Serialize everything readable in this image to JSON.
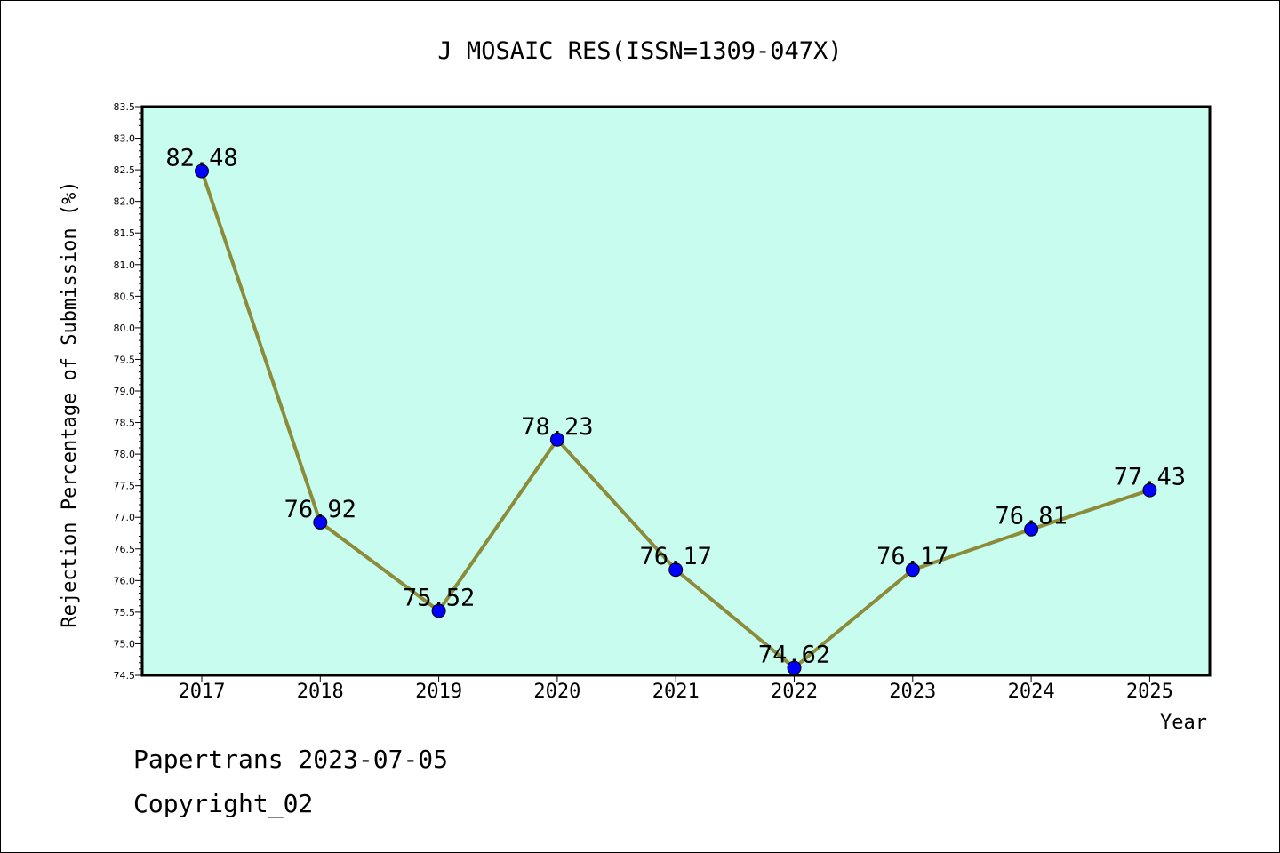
{
  "chart_data": {
    "type": "line",
    "title": "J MOSAIC RES(ISSN=1309-047X)",
    "xlabel": "Year",
    "ylabel": "Rejection Percentage of Submission (%)",
    "categories": [
      "2017",
      "2018",
      "2019",
      "2020",
      "2021",
      "2022",
      "2023",
      "2024",
      "2025"
    ],
    "values": [
      82.48,
      76.92,
      75.52,
      78.23,
      76.17,
      74.62,
      76.17,
      76.81,
      77.43
    ],
    "value_labels": [
      "82.48",
      "76.92",
      "75.52",
      "78.23",
      "76.17",
      "74.62",
      "76.17",
      "76.81",
      "77.43"
    ],
    "ylim": [
      74.5,
      83.5
    ],
    "yticks": [
      "74.5",
      "75.0",
      "75.5",
      "76.0",
      "76.5",
      "77.0",
      "77.5",
      "78.0",
      "78.5",
      "79.0",
      "79.5",
      "80.0",
      "80.5",
      "81.0",
      "81.5",
      "82.0",
      "82.5",
      "83.0",
      "83.5"
    ],
    "grid": false,
    "line_color": "#8b8b3a",
    "marker_color": "#0000ff",
    "plot_background": "#c8fcef"
  },
  "footer": {
    "line1": "Papertrans 2023-07-05",
    "line2": "Copyright_02"
  }
}
